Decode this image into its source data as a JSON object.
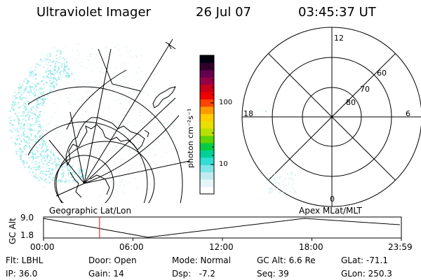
{
  "header": {
    "instrument": "Ultraviolet Imager",
    "date": "26 Jul 07",
    "time": "03:45:37 UT"
  },
  "colorbar": {
    "unit_label": "photon cm⁻²s⁻¹",
    "ticks": [
      {
        "label": "100",
        "value": 100
      },
      {
        "label": "10",
        "value": 10
      }
    ],
    "colors": [
      "#ffffff",
      "#e6f5f8",
      "#c0ecf0",
      "#80e4ec",
      "#33ddd4",
      "#00d296",
      "#00cc44",
      "#60d400",
      "#b8e000",
      "#e8e000",
      "#ffcc00",
      "#ff9900",
      "#ff4400",
      "#ee0000",
      "#c80018",
      "#960046",
      "#64004c",
      "#30002c",
      "#000010"
    ]
  },
  "polar_plot": {
    "mlt_labels": [
      {
        "label": "12",
        "pos": "top"
      },
      {
        "label": "6",
        "pos": "right"
      },
      {
        "label": "0",
        "pos": "bottom"
      },
      {
        "label": "18",
        "pos": "left"
      }
    ],
    "lat_labels": [
      "60",
      "70",
      "80"
    ]
  },
  "timeline": {
    "axis_label": "GC Alt",
    "y_ticks": [
      "9.0",
      "1.8"
    ],
    "left_label": "Geographic Lat/Lon",
    "right_label": "Apex MLat/MLT",
    "x_ticks": [
      "00:00",
      "06:00",
      "12:00",
      "18:00",
      "23:59"
    ],
    "marker_time_hours": 3.76
  },
  "status": {
    "flt": "Flt: LBHL",
    "ip": "IP: 36.0",
    "door": "Door: Open",
    "gain": "Gain: 14",
    "mode": "Mode: Normal",
    "dsp": "Dsp:   -7.2",
    "gc_alt": "GC Alt: 6.6 Re",
    "seq": "Seq: 39",
    "glat": "GLat: -71.1",
    "glon": "GLon: 250.3"
  },
  "colors": {
    "aurora": "#8ae6e6",
    "marker": "#ff0000",
    "line": "#000000"
  }
}
